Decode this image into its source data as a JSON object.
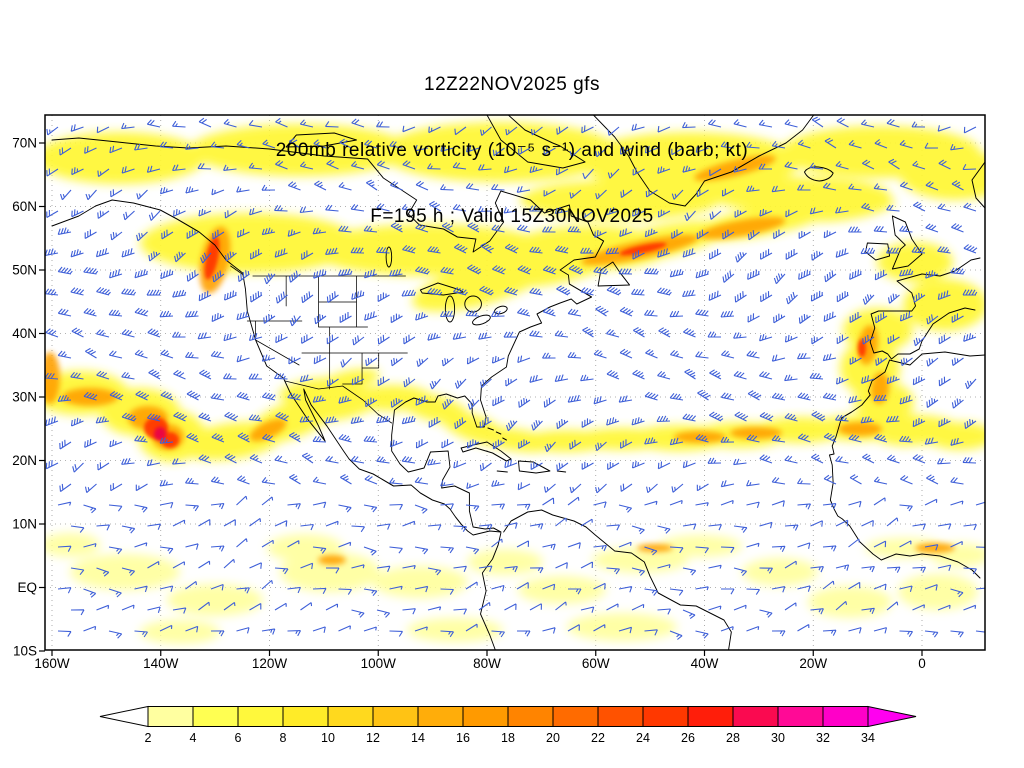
{
  "title": {
    "line1": "12Z22NOV2025 gfs",
    "line2": "200mb relative vorticity (10⁻⁵ s⁻¹) and wind (barb; kt)",
    "line3": "F=195 h ; Valid 15Z30NOV2025"
  },
  "chart_data": {
    "type": "heatmap",
    "title": "12Z22NOV2025 gfs",
    "subtitle": "200mb relative vorticity (10⁻⁵ s⁻¹) and wind (barb; kt)",
    "forecast": "F=195 h ; Valid 15Z30NOV2025",
    "lat_tick_labels": [
      "70N",
      "60N",
      "50N",
      "40N",
      "30N",
      "20N",
      "10N",
      "EQ",
      "10S"
    ],
    "lon_tick_labels": [
      "160W",
      "140W",
      "120W",
      "100W",
      "80W",
      "60W",
      "40W",
      "20W",
      "0"
    ],
    "grid": true,
    "wind_barb_color": "#3E5FD8",
    "coastline_color": "#000000",
    "colorbar": {
      "tick_labels": [
        "2",
        "4",
        "6",
        "8",
        "10",
        "12",
        "14",
        "16",
        "18",
        "20",
        "22",
        "24",
        "26",
        "28",
        "30",
        "32",
        "34"
      ],
      "segment_colors": [
        "#FFFFA0",
        "#FFFF52",
        "#FFF83C",
        "#FFEB28",
        "#FFD91E",
        "#FFC314",
        "#FFAD0A",
        "#FF9A00",
        "#FF8400",
        "#FF6B00",
        "#FF5200",
        "#FF3800",
        "#FF1E0A",
        "#FA0A50",
        "#FF0A96",
        "#FF00C8"
      ],
      "under_arrow_color": "#FFFFFF",
      "over_arrow_color": "#FF00F0"
    }
  }
}
